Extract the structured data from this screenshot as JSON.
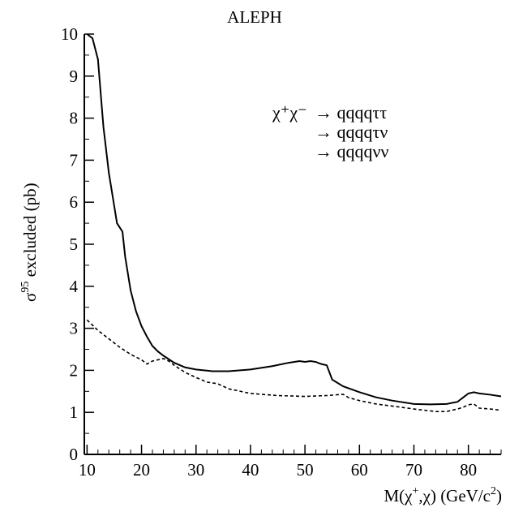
{
  "chart_data": {
    "type": "line",
    "title": "ALEPH",
    "ylabel_main": "σ",
    "ylabel_sup": "95",
    "ylabel_rest": " excluded (pb)",
    "xlabel_prefix": "M(χ",
    "xlabel_sup": "+",
    "xlabel_mid": ",χ)  (GeV/c",
    "xlabel_sup2": "2",
    "xlabel_suffix": ")",
    "xlim": [
      9.5,
      86
    ],
    "ylim": [
      0,
      10
    ],
    "x_ticks": [
      "10",
      "20",
      "30",
      "40",
      "50",
      "60",
      "70",
      "80"
    ],
    "y_ticks": [
      "0",
      "1",
      "2",
      "3",
      "4",
      "5",
      "6",
      "7",
      "8",
      "9",
      "10"
    ],
    "annotation": {
      "main": "χ⁺χ⁻",
      "line1": "→ qqqqττ",
      "line2": "→ qqqqτν",
      "line3": "→ qqqqνν"
    },
    "series": [
      {
        "style": "solid",
        "x": [
          10,
          11,
          12,
          13,
          14,
          15,
          15.5,
          16,
          16.5,
          17,
          18,
          19,
          20,
          21,
          22,
          23,
          24,
          26,
          28,
          30,
          33,
          36,
          40,
          44,
          47,
          49,
          50,
          51,
          52,
          53,
          54,
          55,
          57,
          60,
          63,
          66,
          70,
          73,
          76,
          78,
          79,
          80,
          81,
          82,
          84,
          86
        ],
        "y": [
          10,
          9.9,
          9.4,
          7.8,
          6.7,
          5.9,
          5.5,
          5.4,
          5.3,
          4.7,
          3.9,
          3.4,
          3.05,
          2.8,
          2.58,
          2.45,
          2.35,
          2.18,
          2.07,
          2.02,
          1.98,
          1.98,
          2.02,
          2.1,
          2.18,
          2.22,
          2.2,
          2.22,
          2.2,
          2.15,
          2.12,
          1.78,
          1.62,
          1.48,
          1.36,
          1.28,
          1.2,
          1.19,
          1.2,
          1.25,
          1.35,
          1.45,
          1.48,
          1.45,
          1.42,
          1.38
        ]
      },
      {
        "style": "dashed",
        "x": [
          10,
          12,
          14,
          16,
          18,
          20,
          21,
          22,
          23,
          24,
          25,
          26,
          28,
          30,
          32,
          34,
          36,
          40,
          45,
          50,
          54,
          56,
          57,
          58,
          60,
          63,
          66,
          70,
          72,
          74,
          76,
          78,
          79,
          80,
          81,
          82,
          84,
          86
        ],
        "y": [
          3.2,
          2.95,
          2.75,
          2.55,
          2.38,
          2.25,
          2.15,
          2.22,
          2.25,
          2.28,
          2.22,
          2.12,
          1.95,
          1.83,
          1.72,
          1.68,
          1.56,
          1.45,
          1.4,
          1.38,
          1.4,
          1.42,
          1.43,
          1.35,
          1.28,
          1.2,
          1.15,
          1.08,
          1.05,
          1.02,
          1.02,
          1.08,
          1.12,
          1.18,
          1.2,
          1.1,
          1.08,
          1.05
        ]
      }
    ]
  }
}
